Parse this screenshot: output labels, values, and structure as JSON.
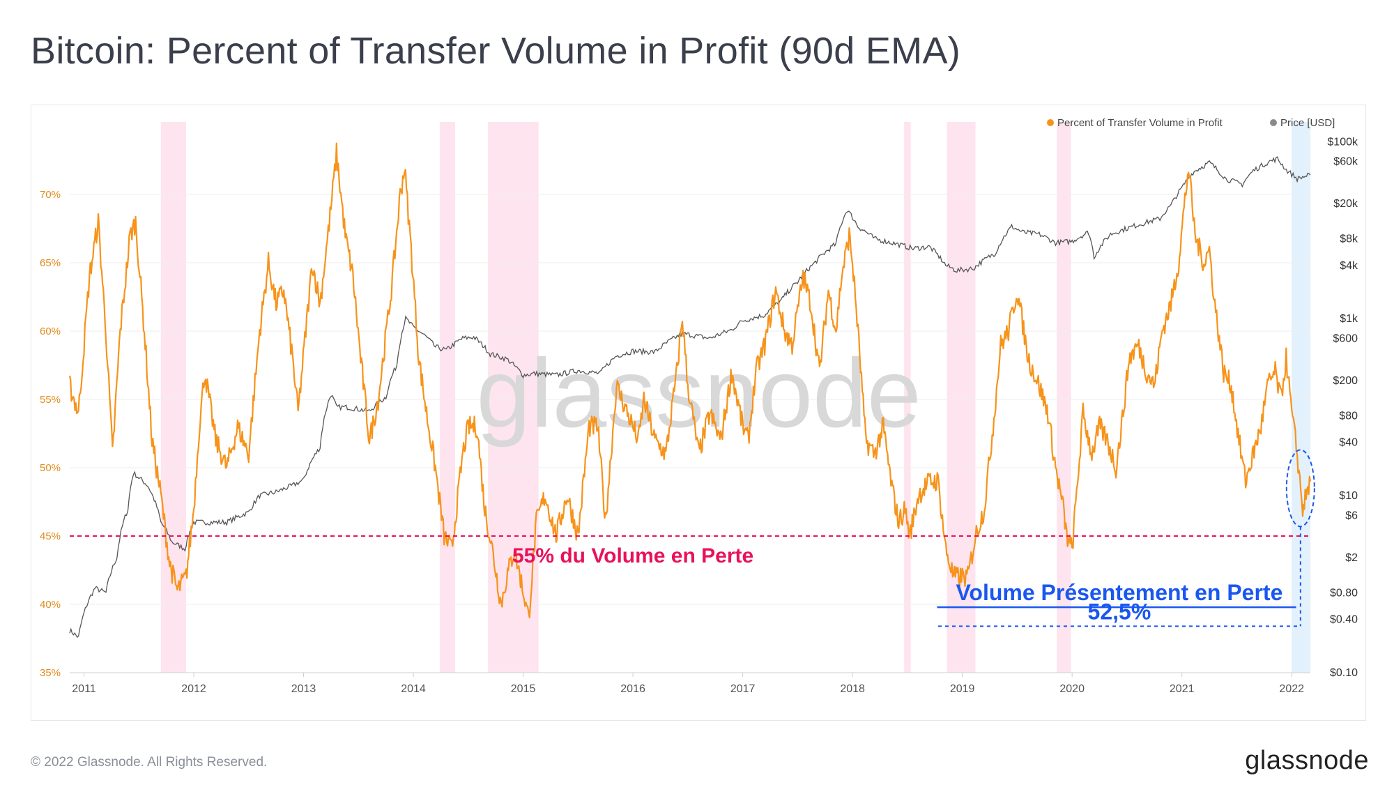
{
  "title": "Bitcoin: Percent of Transfer Volume in Profit (90d EMA)",
  "footer": {
    "copyright": "© 2022 Glassnode. All Rights Reserved.",
    "brand": "glassnode"
  },
  "watermark": "glassnode",
  "colors": {
    "profit": "#f7931a",
    "price": "#555555",
    "loss_band": "#fde4ee",
    "current_band": "#e3f1fc",
    "red": "#e8115b",
    "blue": "#1a57f0"
  },
  "chart_data": {
    "type": "line",
    "title": "Bitcoin: Percent of Transfer Volume in Profit (90d EMA)",
    "legend": [
      "Percent of Transfer Volume in Profit",
      "Price [USD]"
    ],
    "legend_placement": "top-right",
    "x_ticks": [
      "2011",
      "2012",
      "2013",
      "2014",
      "2015",
      "2016",
      "2017",
      "2018",
      "2019",
      "2020",
      "2021",
      "2022"
    ],
    "x_range": [
      2010.87,
      2022.17
    ],
    "y_left": {
      "label": "Percent of Transfer Volume in Profit",
      "range": [
        35,
        75
      ],
      "ticks": [
        "35%",
        "40%",
        "45%",
        "50%",
        "55%",
        "60%",
        "65%",
        "70%"
      ]
    },
    "y_right": {
      "label": "Price [USD]",
      "scale": "log",
      "range": [
        0.1,
        150000
      ],
      "ticks": [
        "$0.10",
        "$0.40",
        "$0.80",
        "$2",
        "$6",
        "$10",
        "$40",
        "$80",
        "$200",
        "$600",
        "$1k",
        "$4k",
        "$8k",
        "$20k",
        "$60k",
        "$100k"
      ]
    },
    "series": [
      {
        "name": "Percent of Transfer Volume in Profit",
        "axis": "left",
        "points": [
          [
            2010.87,
            56
          ],
          [
            2010.95,
            54
          ],
          [
            2011.05,
            64
          ],
          [
            2011.13,
            68
          ],
          [
            2011.2,
            60
          ],
          [
            2011.26,
            51
          ],
          [
            2011.33,
            60
          ],
          [
            2011.42,
            67
          ],
          [
            2011.47,
            68
          ],
          [
            2011.55,
            60
          ],
          [
            2011.62,
            52
          ],
          [
            2011.7,
            48
          ],
          [
            2011.78,
            43
          ],
          [
            2011.85,
            41
          ],
          [
            2011.93,
            42
          ],
          [
            2012.0,
            47
          ],
          [
            2012.05,
            53
          ],
          [
            2012.1,
            57
          ],
          [
            2012.2,
            52
          ],
          [
            2012.3,
            50
          ],
          [
            2012.4,
            53
          ],
          [
            2012.5,
            51
          ],
          [
            2012.6,
            60
          ],
          [
            2012.68,
            65
          ],
          [
            2012.75,
            62
          ],
          [
            2012.82,
            63
          ],
          [
            2012.9,
            58
          ],
          [
            2012.95,
            54
          ],
          [
            2013.02,
            60
          ],
          [
            2013.08,
            65
          ],
          [
            2013.15,
            62
          ],
          [
            2013.25,
            69
          ],
          [
            2013.3,
            73
          ],
          [
            2013.38,
            67
          ],
          [
            2013.45,
            64
          ],
          [
            2013.52,
            58
          ],
          [
            2013.6,
            52
          ],
          [
            2013.68,
            55
          ],
          [
            2013.8,
            63
          ],
          [
            2013.88,
            70
          ],
          [
            2013.92,
            72
          ],
          [
            2013.98,
            66
          ],
          [
            2014.05,
            58
          ],
          [
            2014.12,
            54
          ],
          [
            2014.2,
            50
          ],
          [
            2014.28,
            45
          ],
          [
            2014.35,
            44
          ],
          [
            2014.45,
            51
          ],
          [
            2014.5,
            53
          ],
          [
            2014.58,
            53
          ],
          [
            2014.65,
            47
          ],
          [
            2014.72,
            44
          ],
          [
            2014.8,
            40
          ],
          [
            2014.85,
            42
          ],
          [
            2014.92,
            44
          ],
          [
            2015.0,
            41
          ],
          [
            2015.05,
            39
          ],
          [
            2015.12,
            46
          ],
          [
            2015.2,
            48
          ],
          [
            2015.3,
            45
          ],
          [
            2015.4,
            48
          ],
          [
            2015.5,
            45
          ],
          [
            2015.6,
            53
          ],
          [
            2015.68,
            53
          ],
          [
            2015.75,
            46
          ],
          [
            2015.85,
            56
          ],
          [
            2015.95,
            54
          ],
          [
            2016.05,
            52
          ],
          [
            2016.1,
            55
          ],
          [
            2016.2,
            52
          ],
          [
            2016.3,
            51
          ],
          [
            2016.4,
            57
          ],
          [
            2016.45,
            61
          ],
          [
            2016.5,
            56
          ],
          [
            2016.6,
            51
          ],
          [
            2016.7,
            54
          ],
          [
            2016.8,
            52
          ],
          [
            2016.9,
            57
          ],
          [
            2017.0,
            53
          ],
          [
            2017.05,
            52
          ],
          [
            2017.12,
            57
          ],
          [
            2017.2,
            59
          ],
          [
            2017.3,
            63
          ],
          [
            2017.38,
            60
          ],
          [
            2017.45,
            59
          ],
          [
            2017.55,
            64
          ],
          [
            2017.62,
            62
          ],
          [
            2017.7,
            57
          ],
          [
            2017.78,
            63
          ],
          [
            2017.85,
            60
          ],
          [
            2017.9,
            64
          ],
          [
            2017.97,
            67
          ],
          [
            2018.0,
            65
          ],
          [
            2018.05,
            60
          ],
          [
            2018.12,
            52
          ],
          [
            2018.2,
            51
          ],
          [
            2018.28,
            53
          ],
          [
            2018.35,
            49
          ],
          [
            2018.42,
            46
          ],
          [
            2018.48,
            47
          ],
          [
            2018.52,
            45
          ],
          [
            2018.6,
            48
          ],
          [
            2018.7,
            49
          ],
          [
            2018.78,
            49
          ],
          [
            2018.85,
            44
          ],
          [
            2018.92,
            42
          ],
          [
            2019.0,
            42
          ],
          [
            2019.05,
            42
          ],
          [
            2019.12,
            45
          ],
          [
            2019.2,
            47
          ],
          [
            2019.28,
            53
          ],
          [
            2019.35,
            59
          ],
          [
            2019.42,
            60
          ],
          [
            2019.5,
            63
          ],
          [
            2019.6,
            58
          ],
          [
            2019.7,
            56
          ],
          [
            2019.78,
            54
          ],
          [
            2019.85,
            50
          ],
          [
            2019.92,
            47
          ],
          [
            2019.95,
            45
          ],
          [
            2020.0,
            44
          ],
          [
            2020.05,
            49
          ],
          [
            2020.1,
            54
          ],
          [
            2020.18,
            51
          ],
          [
            2020.25,
            53
          ],
          [
            2020.32,
            52
          ],
          [
            2020.4,
            50
          ],
          [
            2020.45,
            53
          ],
          [
            2020.52,
            58
          ],
          [
            2020.6,
            59
          ],
          [
            2020.68,
            57
          ],
          [
            2020.75,
            56
          ],
          [
            2020.82,
            60
          ],
          [
            2020.9,
            62
          ],
          [
            2020.97,
            65
          ],
          [
            2021.02,
            69
          ],
          [
            2021.06,
            72
          ],
          [
            2021.12,
            67
          ],
          [
            2021.2,
            65
          ],
          [
            2021.25,
            66
          ],
          [
            2021.3,
            62
          ],
          [
            2021.38,
            57
          ],
          [
            2021.45,
            56
          ],
          [
            2021.52,
            52
          ],
          [
            2021.58,
            49
          ],
          [
            2021.65,
            51
          ],
          [
            2021.72,
            53
          ],
          [
            2021.78,
            56
          ],
          [
            2021.85,
            57
          ],
          [
            2021.9,
            55
          ],
          [
            2021.95,
            58
          ],
          [
            2022.0,
            54
          ],
          [
            2022.05,
            51
          ],
          [
            2022.1,
            47
          ],
          [
            2022.17,
            49
          ]
        ]
      },
      {
        "name": "Price [USD]",
        "axis": "right",
        "points": [
          [
            2010.87,
            0.3
          ],
          [
            2010.95,
            0.25
          ],
          [
            2011.1,
            0.9
          ],
          [
            2011.2,
            0.8
          ],
          [
            2011.3,
            2
          ],
          [
            2011.4,
            7
          ],
          [
            2011.45,
            18
          ],
          [
            2011.5,
            16
          ],
          [
            2011.58,
            13
          ],
          [
            2011.7,
            5
          ],
          [
            2011.8,
            3
          ],
          [
            2011.92,
            2.5
          ],
          [
            2012.0,
            5
          ],
          [
            2012.1,
            5
          ],
          [
            2012.3,
            5
          ],
          [
            2012.5,
            6.5
          ],
          [
            2012.6,
            10
          ],
          [
            2012.75,
            11
          ],
          [
            2012.9,
            13
          ],
          [
            2013.0,
            15
          ],
          [
            2013.15,
            35
          ],
          [
            2013.25,
            140
          ],
          [
            2013.3,
            100
          ],
          [
            2013.4,
            100
          ],
          [
            2013.6,
            90
          ],
          [
            2013.75,
            130
          ],
          [
            2013.85,
            300
          ],
          [
            2013.93,
            1000
          ],
          [
            2014.0,
            800
          ],
          [
            2014.1,
            650
          ],
          [
            2014.2,
            480
          ],
          [
            2014.3,
            440
          ],
          [
            2014.45,
            600
          ],
          [
            2014.55,
            620
          ],
          [
            2014.7,
            400
          ],
          [
            2014.85,
            350
          ],
          [
            2015.0,
            230
          ],
          [
            2015.1,
            240
          ],
          [
            2015.3,
            230
          ],
          [
            2015.5,
            260
          ],
          [
            2015.7,
            240
          ],
          [
            2015.85,
            380
          ],
          [
            2016.0,
            430
          ],
          [
            2016.2,
            420
          ],
          [
            2016.45,
            680
          ],
          [
            2016.7,
            600
          ],
          [
            2016.9,
            750
          ],
          [
            2017.0,
            950
          ],
          [
            2017.2,
            1100
          ],
          [
            2017.35,
            1600
          ],
          [
            2017.5,
            2600
          ],
          [
            2017.65,
            4200
          ],
          [
            2017.85,
            7000
          ],
          [
            2017.95,
            17000
          ],
          [
            2018.05,
            11000
          ],
          [
            2018.2,
            8000
          ],
          [
            2018.4,
            7000
          ],
          [
            2018.55,
            6200
          ],
          [
            2018.7,
            6500
          ],
          [
            2018.85,
            4000
          ],
          [
            2018.95,
            3500
          ],
          [
            2019.1,
            3700
          ],
          [
            2019.3,
            5500
          ],
          [
            2019.45,
            11000
          ],
          [
            2019.55,
            9500
          ],
          [
            2019.7,
            9000
          ],
          [
            2019.85,
            7200
          ],
          [
            2020.0,
            7500
          ],
          [
            2020.15,
            9500
          ],
          [
            2020.2,
            5000
          ],
          [
            2020.35,
            9000
          ],
          [
            2020.6,
            11500
          ],
          [
            2020.8,
            13500
          ],
          [
            2020.9,
            19000
          ],
          [
            2021.0,
            30000
          ],
          [
            2021.1,
            45000
          ],
          [
            2021.25,
            58000
          ],
          [
            2021.4,
            38000
          ],
          [
            2021.55,
            33000
          ],
          [
            2021.65,
            47000
          ],
          [
            2021.8,
            60000
          ],
          [
            2021.87,
            64000
          ],
          [
            2021.95,
            48000
          ],
          [
            2022.05,
            38000
          ],
          [
            2022.1,
            40000
          ],
          [
            2022.17,
            42000
          ]
        ]
      }
    ],
    "shaded_regions": [
      [
        2011.7,
        2011.93
      ],
      [
        2014.24,
        2014.38
      ],
      [
        2014.68,
        2015.14
      ],
      [
        2018.47,
        2018.53
      ],
      [
        2018.86,
        2019.12
      ],
      [
        2019.86,
        2019.99
      ]
    ],
    "current_region": [
      2022.0,
      2022.17
    ],
    "reference_line": {
      "value": 45,
      "axis": "left"
    },
    "annotations": {
      "loss_threshold": "55% du Volume en Perte",
      "current_label": "Volume Présentement en Perte",
      "current_value": "52,5%"
    }
  }
}
